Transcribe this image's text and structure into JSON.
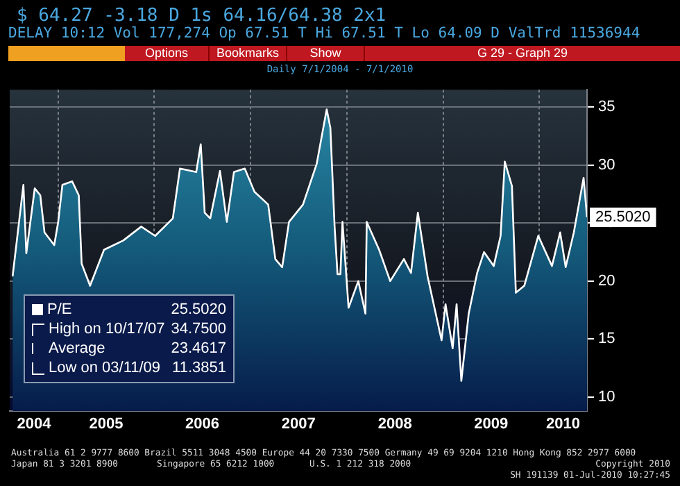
{
  "chart_data": {
    "type": "area",
    "title": "Daily 7/1/2004 - 7/1/2010",
    "x": [
      "2004-07-12",
      "2004-08-22",
      "2004-09-02",
      "2004-10-04",
      "2004-10-25",
      "2004-11-10",
      "2004-12-17",
      "2005-01-01",
      "2005-01-17",
      "2005-02-23",
      "2005-03-20",
      "2005-03-31",
      "2005-05-02",
      "2005-06-24",
      "2005-09-05",
      "2005-11-12",
      "2006-01-04",
      "2006-03-12",
      "2006-04-08",
      "2006-06-09",
      "2006-06-26",
      "2006-07-11",
      "2006-08-01",
      "2006-09-07",
      "2006-10-03",
      "2006-10-30",
      "2006-12-10",
      "2007-01-16",
      "2007-03-09",
      "2007-04-05",
      "2007-05-01",
      "2007-05-27",
      "2007-07-19",
      "2007-09-09",
      "2007-10-17",
      "2007-10-31",
      "2007-11-16",
      "2007-11-27",
      "2007-12-08",
      "2007-12-16",
      "2008-01-08",
      "2008-02-14",
      "2008-03-12",
      "2008-03-17",
      "2008-05-03",
      "2008-06-14",
      "2008-08-05",
      "2008-09-01",
      "2008-09-27",
      "2008-11-03",
      "2008-12-26",
      "2009-01-10",
      "2009-02-06",
      "2009-02-21",
      "2009-03-11",
      "2009-04-08",
      "2009-05-10",
      "2009-06-05",
      "2009-07-12",
      "2009-08-07",
      "2009-08-23",
      "2009-09-19",
      "2009-10-04",
      "2009-11-05",
      "2009-12-28",
      "2010-02-18",
      "2010-03-21",
      "2010-04-11",
      "2010-05-12",
      "2010-06-18",
      "2010-07-01"
    ],
    "series": [
      {
        "name": "P/E",
        "color": "#ffffff",
        "values": [
          20.4,
          28.3,
          22.4,
          28,
          27.4,
          24.2,
          23.1,
          25.1,
          28.3,
          28.6,
          27.4,
          21.5,
          19.6,
          22.7,
          23.5,
          24.7,
          23.9,
          25.4,
          29.7,
          29.4,
          31.8,
          25.9,
          25.4,
          29.5,
          25.1,
          29.4,
          29.7,
          27.7,
          26.6,
          21.9,
          21.2,
          25.1,
          26.6,
          30.1,
          34.8,
          33.2,
          24.7,
          20.6,
          20.6,
          25.1,
          17.7,
          20,
          17.2,
          25.1,
          22.7,
          20,
          21.9,
          20.7,
          25.9,
          20.4,
          14.9,
          18,
          14.2,
          18,
          11.4,
          17.2,
          20.7,
          22.5,
          21.3,
          23.9,
          30.3,
          28.2,
          19,
          19.6,
          23.9,
          21.3,
          24.2,
          21.2,
          24.2,
          28.9,
          25.5
        ]
      }
    ],
    "xlim": [
      "2004-07-01",
      "2010-07-01"
    ],
    "xticks": [
      {
        "value": "2004-10-01",
        "label": "2004"
      },
      {
        "value": "2005-01-01",
        "label": null
      },
      {
        "value": "2005-07-02",
        "label": "2005"
      },
      {
        "value": "2006-01-01",
        "label": null
      },
      {
        "value": "2006-07-02",
        "label": "2006"
      },
      {
        "value": "2007-01-01",
        "label": null
      },
      {
        "value": "2007-07-02",
        "label": "2007"
      },
      {
        "value": "2008-01-01",
        "label": null
      },
      {
        "value": "2008-07-02",
        "label": "2008"
      },
      {
        "value": "2009-01-01",
        "label": null
      },
      {
        "value": "2009-07-02",
        "label": "2009"
      },
      {
        "value": "2010-01-01",
        "label": null
      },
      {
        "value": "2010-04-01",
        "label": "2010"
      }
    ],
    "ylim": [
      8.8,
      36.5
    ],
    "yticks": [
      10,
      15,
      20,
      25,
      30,
      35
    ],
    "grid": true,
    "legend": "bottom left",
    "annotations": [
      "$ 64.27 -3.18 D 1s 64.16/64.38 2x1",
      "DELAY 10:12 Vol 177,274 Op 67.51 T Hi 67.51 T Lo 64.09 D ValTrd 11536944",
      "Options",
      "Bookmarks",
      "Show",
      "G 29 - Graph 29",
      {
        "text": "25.5020",
        "x": "2010-07-01",
        "y": 25.502
      },
      "High on 10/17/07 34.7500",
      "Average 23.4617",
      "Low on 03/11/09 11.3851",
      "Australia 61 2 9777 8600 Brazil 5511 3048 4500 Europe 44 20 7330 7500 Germany 49 69 9204 1210 Hong Kong 852 2977 6000",
      "Japan 81 3 3201 8900",
      "Singapore 65 6212 1000",
      "U.S. 1 212 318 2000",
      "Copyright 2010",
      "SH 191139 01-Jul-2010 10:27:45"
    ]
  }
}
